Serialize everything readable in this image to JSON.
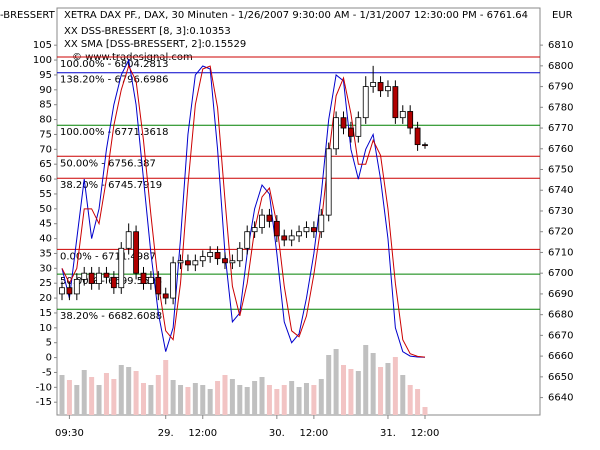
{
  "chart_data": {
    "type": "candlestick",
    "title": "XETRA DAX PF., DAX, 30 Minuten - 1/26/2007 9:30:00 AM - 1/31/2007 12:30:00 PM - 6761.64",
    "left_label": "-BRESSERT",
    "currency": "EUR",
    "copyright": "© www.tradesignal.com",
    "open": [
      6690,
      6693,
      6690,
      6697,
      6700,
      6695,
      6700,
      6698,
      6693,
      6712,
      6720,
      6700,
      6695,
      6698,
      6690,
      6688,
      6705,
      6706,
      6704,
      6706,
      6708,
      6710,
      6707,
      6705,
      6706,
      6712,
      6720,
      6722,
      6728,
      6725,
      6718,
      6716,
      6718,
      6720,
      6722,
      6720,
      6728,
      6760,
      6775,
      6770,
      6766,
      6775,
      6790,
      6792,
      6788,
      6790,
      6775,
      6778,
      6770,
      6762
    ],
    "high": [
      6696,
      6696,
      6700,
      6703,
      6703,
      6703,
      6703,
      6701,
      6715,
      6724,
      6723,
      6703,
      6701,
      6701,
      6693,
      6708,
      6709,
      6709,
      6709,
      6711,
      6713,
      6713,
      6710,
      6709,
      6715,
      6723,
      6725,
      6731,
      6731,
      6728,
      6721,
      6721,
      6723,
      6725,
      6725,
      6731,
      6763,
      6778,
      6778,
      6773,
      6778,
      6795,
      6800,
      6795,
      6793,
      6793,
      6781,
      6781,
      6773,
      6763
    ],
    "low": [
      6687,
      6687,
      6687,
      6694,
      6692,
      6692,
      6695,
      6690,
      6690,
      6709,
      6697,
      6692,
      6692,
      6687,
      6685,
      6685,
      6702,
      6701,
      6701,
      6703,
      6705,
      6704,
      6702,
      6702,
      6703,
      6709,
      6717,
      6719,
      6722,
      6715,
      6713,
      6713,
      6715,
      6717,
      6717,
      6717,
      6725,
      6757,
      6767,
      6763,
      6763,
      6772,
      6787,
      6785,
      6785,
      6772,
      6772,
      6767,
      6759,
      6760
    ],
    "close": [
      6693,
      6690,
      6697,
      6700,
      6695,
      6700,
      6698,
      6693,
      6712,
      6720,
      6700,
      6695,
      6698,
      6690,
      6688,
      6705,
      6706,
      6704,
      6706,
      6708,
      6710,
      6707,
      6705,
      6706,
      6712,
      6720,
      6722,
      6728,
      6725,
      6718,
      6716,
      6718,
      6720,
      6722,
      6720,
      6728,
      6760,
      6775,
      6770,
      6766,
      6775,
      6790,
      6792,
      6788,
      6790,
      6775,
      6778,
      6770,
      6762,
      6761.64
    ],
    "volume": [
      40,
      35,
      30,
      45,
      38,
      30,
      42,
      36,
      50,
      48,
      44,
      32,
      30,
      40,
      55,
      35,
      30,
      28,
      32,
      30,
      26,
      34,
      40,
      36,
      30,
      28,
      34,
      38,
      30,
      26,
      30,
      34,
      28,
      32,
      30,
      36,
      60,
      66,
      50,
      46,
      44,
      70,
      62,
      48,
      52,
      58,
      40,
      30,
      26,
      8
    ],
    "series": [
      {
        "name": "XX DSS-BRESSERT [8, 3]:0.10353",
        "color": "#0000cc",
        "axis": "y",
        "values": [
          30,
          20,
          40,
          60,
          40,
          50,
          70,
          85,
          95,
          100,
          85,
          60,
          35,
          15,
          2,
          10,
          40,
          75,
          95,
          98,
          97,
          70,
          35,
          12,
          15,
          35,
          50,
          58,
          55,
          35,
          12,
          5,
          8,
          20,
          35,
          55,
          80,
          95,
          93,
          70,
          60,
          70,
          75,
          60,
          40,
          10,
          2,
          0.5,
          0.2,
          0.10353
        ]
      },
      {
        "name": "XX SMA [DSS-BRESSERT, 2]:0.15529",
        "color": "#cc0000",
        "axis": "y",
        "values": [
          30,
          25,
          30,
          50,
          50,
          45,
          60,
          78,
          90,
          98,
          93,
          73,
          48,
          25,
          9,
          6,
          25,
          58,
          85,
          97,
          98,
          84,
          53,
          24,
          14,
          25,
          43,
          54,
          57,
          45,
          24,
          9,
          7,
          14,
          28,
          45,
          68,
          88,
          94,
          82,
          65,
          65,
          73,
          68,
          50,
          25,
          6,
          1.3,
          0.4,
          0.15529
        ]
      }
    ],
    "fib_lines": [
      {
        "label": "100.00% - 6804.2813",
        "value": 6804.2813,
        "color": "#cc0000"
      },
      {
        "label": "138.20% - 6796.6986",
        "value": 6796.6986,
        "color": "#0000cc"
      },
      {
        "label": "100.00% - 6771.3618",
        "value": 6771.3618,
        "color": "#008000"
      },
      {
        "label": "50.00% - 6756.387",
        "value": 6756.387,
        "color": "#cc0000"
      },
      {
        "label": "38.20% - 6745.7919",
        "value": 6745.7919,
        "color": "#cc0000"
      },
      {
        "label": "0.00% - 6711.4987",
        "value": 6711.4987,
        "color": "#cc0000"
      },
      {
        "label": "50.00% - 6699.5593",
        "value": 6699.5593,
        "color": "#008000"
      },
      {
        "label": "38.20% - 6682.6088",
        "value": 6682.6088,
        "color": "#008000"
      }
    ],
    "ylim": [
      -19.3,
      117.5
    ],
    "yticks": [
      -15,
      -10,
      -5,
      0,
      5,
      10,
      15,
      20,
      25,
      30,
      35,
      40,
      45,
      50,
      55,
      60,
      65,
      70,
      75,
      80,
      85,
      90,
      95,
      100,
      105
    ],
    "y2lim": [
      6631.6,
      6827.9
    ],
    "y2ticks": [
      6640,
      6650,
      6660,
      6670,
      6680,
      6690,
      6700,
      6710,
      6720,
      6730,
      6740,
      6750,
      6760,
      6770,
      6780,
      6790,
      6800,
      6810
    ],
    "xticks": [
      {
        "value": 2,
        "label": "09:30"
      },
      {
        "value": 15,
        "label": "29."
      },
      {
        "value": 20,
        "label": "12:00"
      },
      {
        "value": 30,
        "label": "30."
      },
      {
        "value": 35,
        "label": "12:00"
      },
      {
        "value": 45,
        "label": "31."
      },
      {
        "value": 50,
        "label": "12:00"
      }
    ]
  }
}
